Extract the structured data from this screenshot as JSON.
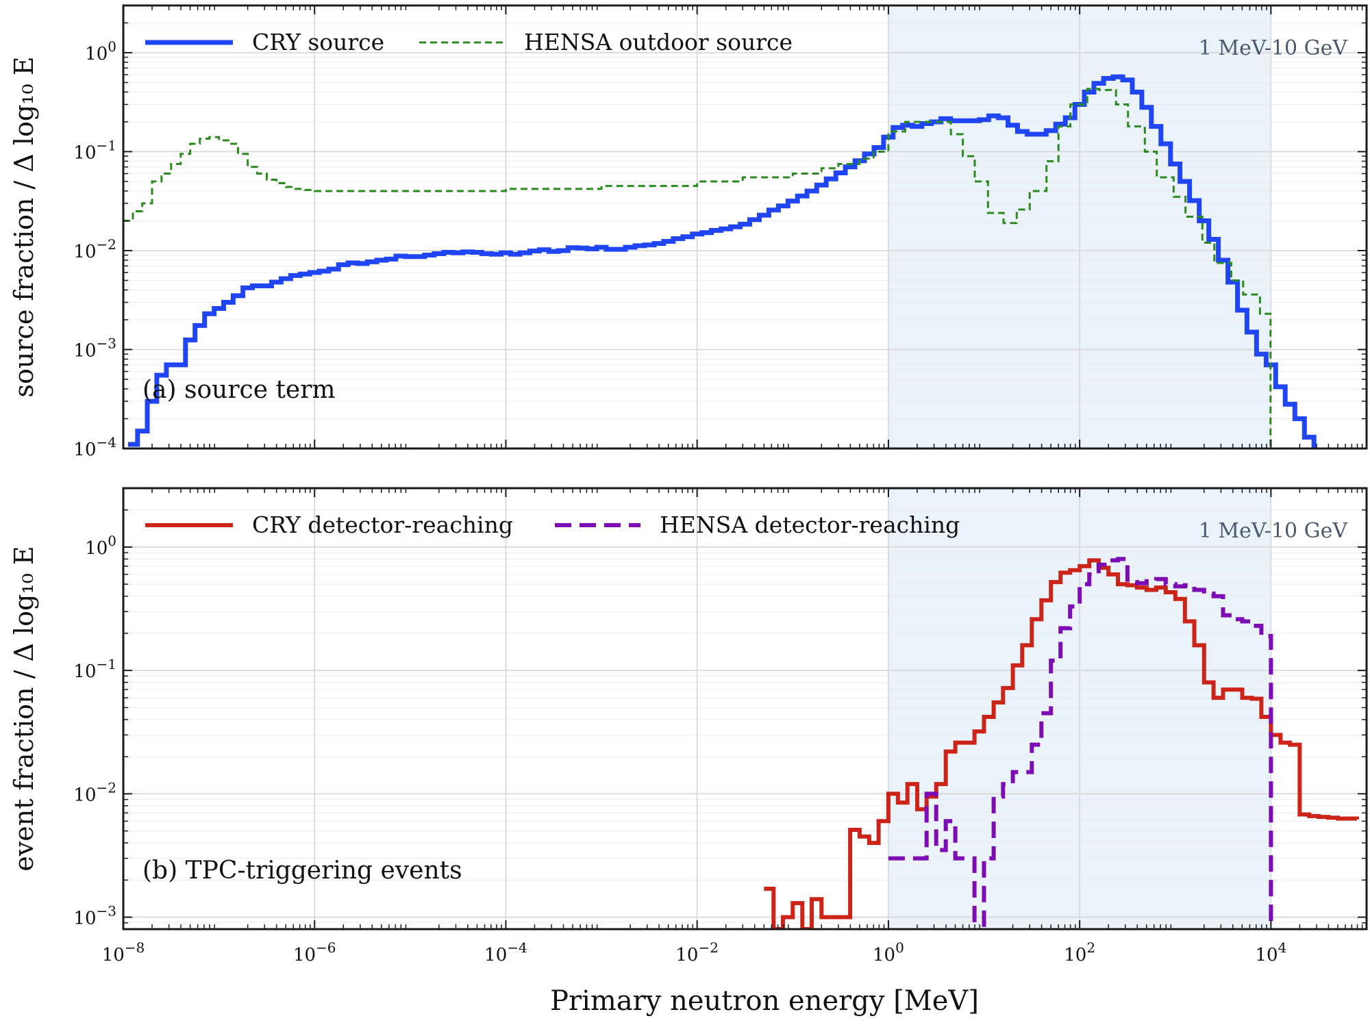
{
  "chart_data": [
    {
      "type": "line",
      "panel_label": "(a) source term",
      "ylabel": "source fraction / Δ log₁₀ E",
      "xlabel": "",
      "xscale": "log",
      "yscale": "log",
      "xlim": [
        1e-08,
        100000.0
      ],
      "ylim": [
        0.0001,
        3
      ],
      "x_ticks": [
        {
          "value": 1e-08,
          "base": "10",
          "exp": "−8"
        },
        {
          "value": 1e-06,
          "base": "10",
          "exp": "−6"
        },
        {
          "value": 0.0001,
          "base": "10",
          "exp": "−4"
        },
        {
          "value": 0.01,
          "base": "10",
          "exp": "−2"
        },
        {
          "value": 1,
          "base": "10",
          "exp": "0"
        },
        {
          "value": 100,
          "base": "10",
          "exp": "2"
        },
        {
          "value": 10000,
          "base": "10",
          "exp": "4"
        }
      ],
      "y_ticks": [
        {
          "value": 1,
          "base": "10",
          "exp": "0"
        },
        {
          "value": 0.1,
          "base": "10",
          "exp": "−1"
        },
        {
          "value": 0.01,
          "base": "10",
          "exp": "−2"
        },
        {
          "value": 0.001,
          "base": "10",
          "exp": "−3"
        },
        {
          "value": 0.0001,
          "base": "10",
          "exp": "−4"
        }
      ],
      "shaded_region": {
        "x": [
          1,
          10000
        ],
        "label": "1 MeV-10 GeV",
        "color": "#eaf2fa"
      },
      "grid": true,
      "legend_position": "top-left",
      "series": [
        {
          "name": "CRY source",
          "color": "#1f45f5",
          "style": "solid",
          "width": 7,
          "x": [
            1.12e-08,
            1.41e-08,
            1.78e-08,
            2.24e-08,
            2.82e-08,
            3.55e-08,
            4.47e-08,
            5.62e-08,
            7.08e-08,
            8.91e-08,
            1.12e-07,
            1.41e-07,
            1.78e-07,
            2.24e-07,
            2.82e-07,
            3.55e-07,
            4.47e-07,
            5.62e-07,
            7.08e-07,
            8.91e-07,
            1.12e-06,
            1.41e-06,
            1.78e-06,
            2.24e-06,
            2.82e-06,
            3.55e-06,
            4.47e-06,
            5.62e-06,
            7.08e-06,
            8.91e-06,
            1.12e-05,
            1.41e-05,
            1.78e-05,
            2.24e-05,
            2.82e-05,
            3.55e-05,
            4.47e-05,
            5.62e-05,
            7.08e-05,
            8.91e-05,
            0.000112,
            0.000141,
            0.000178,
            0.000224,
            0.000282,
            0.000355,
            0.000447,
            0.000562,
            0.000708,
            0.000891,
            0.00112,
            0.00141,
            0.00178,
            0.00224,
            0.00282,
            0.00355,
            0.00447,
            0.00562,
            0.00708,
            0.00891,
            0.0112,
            0.0141,
            0.0178,
            0.0224,
            0.0282,
            0.0355,
            0.0447,
            0.0562,
            0.0708,
            0.0891,
            0.112,
            0.141,
            0.178,
            0.224,
            0.282,
            0.355,
            0.447,
            0.562,
            0.708,
            0.891,
            1.12,
            1.41,
            1.78,
            2.24,
            2.82,
            3.55,
            4.47,
            5.62,
            7.08,
            8.91,
            11.2,
            14.1,
            17.8,
            22.4,
            28.2,
            35.5,
            44.7,
            56.2,
            70.8,
            89.1,
            112,
            141,
            178,
            224,
            282,
            355,
            447,
            562,
            708,
            891,
            1120,
            1410,
            1780,
            2240,
            2820,
            3550,
            4470,
            5620,
            7080,
            8910,
            11200,
            14100,
            17800,
            22400,
            28200
          ],
          "y": [
            0.00011,
            0.00015,
            0.0003,
            0.00055,
            0.0007,
            0.0007,
            0.00125,
            0.00175,
            0.0023,
            0.0026,
            0.003,
            0.0035,
            0.0042,
            0.0044,
            0.0044,
            0.0048,
            0.0052,
            0.0056,
            0.0058,
            0.006,
            0.0062,
            0.0065,
            0.0072,
            0.0075,
            0.0074,
            0.0077,
            0.008,
            0.0082,
            0.0088,
            0.0087,
            0.0087,
            0.009,
            0.0093,
            0.0096,
            0.0095,
            0.0097,
            0.0096,
            0.0093,
            0.0092,
            0.0095,
            0.0092,
            0.0095,
            0.0099,
            0.0102,
            0.0098,
            0.01,
            0.0107,
            0.0106,
            0.0104,
            0.0108,
            0.0103,
            0.0103,
            0.0108,
            0.0112,
            0.0114,
            0.0118,
            0.0124,
            0.0132,
            0.0138,
            0.0147,
            0.0152,
            0.016,
            0.0166,
            0.0174,
            0.0185,
            0.0205,
            0.0228,
            0.0257,
            0.0283,
            0.0317,
            0.0356,
            0.04,
            0.046,
            0.053,
            0.061,
            0.07,
            0.081,
            0.095,
            0.11,
            0.14,
            0.175,
            0.185,
            0.18,
            0.192,
            0.2,
            0.215,
            0.205,
            0.205,
            0.205,
            0.21,
            0.23,
            0.22,
            0.185,
            0.16,
            0.15,
            0.15,
            0.163,
            0.19,
            0.22,
            0.3,
            0.4,
            0.49,
            0.55,
            0.57,
            0.53,
            0.4,
            0.28,
            0.18,
            0.12,
            0.075,
            0.05,
            0.032,
            0.02,
            0.013,
            0.008,
            0.0048,
            0.0025,
            0.0015,
            0.0009,
            0.0007,
            0.00042,
            0.00028,
            0.0002,
            0.00013,
            0.0001
          ]
        },
        {
          "name": "HENSA outdoor source",
          "color": "#2a8a1e",
          "style": "dashed",
          "width": 3,
          "x": [
            1e-08,
            1.26e-08,
            1.58e-08,
            2e-08,
            2.51e-08,
            3.16e-08,
            3.98e-08,
            5.01e-08,
            6.31e-08,
            7.94e-08,
            1e-07,
            1.26e-07,
            1.58e-07,
            2e-07,
            2.51e-07,
            3.16e-07,
            3.98e-07,
            5.01e-07,
            6.31e-07,
            7.94e-07,
            1e-06,
            1e-05,
            0.0001,
            0.001,
            0.01,
            0.03,
            0.1,
            0.2,
            0.3,
            0.5,
            0.7,
            1,
            1.5,
            2.5,
            3.2,
            4.5,
            6,
            8,
            11,
            16,
            22,
            30,
            45,
            60,
            80,
            120,
            160,
            240,
            320,
            480,
            640,
            960,
            1280,
            1920,
            2560,
            3840,
            5120,
            7680,
            9900
          ],
          "y": [
            0.02,
            0.025,
            0.03,
            0.05,
            0.06,
            0.075,
            0.095,
            0.12,
            0.135,
            0.14,
            0.13,
            0.12,
            0.095,
            0.07,
            0.06,
            0.052,
            0.048,
            0.044,
            0.042,
            0.041,
            0.04,
            0.04,
            0.042,
            0.045,
            0.05,
            0.055,
            0.06,
            0.068,
            0.075,
            0.085,
            0.1,
            0.16,
            0.2,
            0.2,
            0.2,
            0.15,
            0.09,
            0.05,
            0.024,
            0.019,
            0.026,
            0.04,
            0.08,
            0.18,
            0.3,
            0.43,
            0.42,
            0.3,
            0.18,
            0.1,
            0.055,
            0.035,
            0.022,
            0.012,
            0.0075,
            0.005,
            0.0036,
            0.0023,
            0.0001
          ]
        }
      ]
    },
    {
      "type": "line",
      "panel_label": "(b) TPC-triggering events",
      "ylabel": "event fraction / Δ log₁₀ E",
      "xlabel": "Primary neutron energy [MeV]",
      "xscale": "log",
      "yscale": "log",
      "xlim": [
        1e-08,
        100000.0
      ],
      "ylim": [
        0.0008,
        3
      ],
      "y_ticks": [
        {
          "value": 1,
          "base": "10",
          "exp": "0"
        },
        {
          "value": 0.1,
          "base": "10",
          "exp": "−1"
        },
        {
          "value": 0.01,
          "base": "10",
          "exp": "−2"
        },
        {
          "value": 0.001,
          "base": "10",
          "exp": "−3"
        }
      ],
      "shaded_region": {
        "x": [
          1,
          10000
        ],
        "label": "1 MeV-10 GeV",
        "color": "#eaf2fa"
      },
      "grid": true,
      "legend_position": "top-left",
      "series": [
        {
          "name": "CRY detector-reaching",
          "color": "#cc2418",
          "style": "solid",
          "width": 6,
          "x": [
            0.05,
            0.063,
            0.079,
            0.1,
            0.126,
            0.158,
            0.2,
            0.251,
            0.316,
            0.398,
            0.5,
            0.63,
            0.79,
            1,
            1.26,
            1.58,
            2,
            2.51,
            3.16,
            3.98,
            5.01,
            6.31,
            7.94,
            10,
            12.6,
            15.8,
            20,
            25.1,
            31.6,
            39.8,
            50.1,
            63.1,
            79.4,
            100,
            126,
            158,
            200,
            251,
            316,
            398,
            501,
            631,
            794,
            1000,
            1260,
            1580,
            2000,
            2510,
            3160,
            3980,
            5010,
            6310,
            7940,
            10000,
            12600,
            15800,
            20000,
            25100,
            31600,
            39800,
            50100,
            63100,
            79400
          ],
          "y": [
            0.0017,
            0.0008,
            0.001,
            0.0013,
            0.0008,
            0.0014,
            0.001,
            0.001,
            0.001,
            0.0051,
            0.0045,
            0.004,
            0.006,
            0.01,
            0.0085,
            0.012,
            0.0075,
            0.0095,
            0.012,
            0.022,
            0.026,
            0.026,
            0.032,
            0.042,
            0.055,
            0.072,
            0.11,
            0.16,
            0.26,
            0.37,
            0.52,
            0.62,
            0.65,
            0.7,
            0.78,
            0.68,
            0.6,
            0.5,
            0.49,
            0.47,
            0.45,
            0.47,
            0.43,
            0.38,
            0.25,
            0.16,
            0.08,
            0.06,
            0.07,
            0.07,
            0.06,
            0.059,
            0.042,
            0.03,
            0.026,
            0.025,
            0.0068,
            0.0066,
            0.0065,
            0.0064,
            0.0063,
            0.0063,
            0.0062
          ]
        },
        {
          "name": "HENSA detector-reaching",
          "color": "#7d0cb5",
          "style": "dashed",
          "width": 6,
          "x": [
            1,
            1.26,
            1.58,
            2,
            2.51,
            3.16,
            3.98,
            5.01,
            6.31,
            7.94,
            10,
            12.6,
            15.8,
            20,
            25.1,
            31.6,
            39.8,
            50.1,
            63.1,
            79.4,
            100,
            126,
            158,
            200,
            251,
            316,
            398,
            501,
            631,
            794,
            1000,
            1260,
            1580,
            2000,
            2510,
            3160,
            3980,
            5010,
            6310,
            7940,
            10000
          ],
          "y": [
            0.003,
            0.003,
            0.003,
            0.003,
            0.01,
            0.0035,
            0.006,
            0.003,
            0.003,
            0.0007,
            0.003,
            0.0095,
            0.012,
            0.015,
            0.015,
            0.025,
            0.045,
            0.12,
            0.22,
            0.33,
            0.5,
            0.6,
            0.72,
            0.78,
            0.8,
            0.52,
            0.51,
            0.53,
            0.55,
            0.5,
            0.48,
            0.49,
            0.45,
            0.42,
            0.4,
            0.28,
            0.26,
            0.25,
            0.23,
            0.19,
            0.0005
          ]
        }
      ]
    }
  ]
}
